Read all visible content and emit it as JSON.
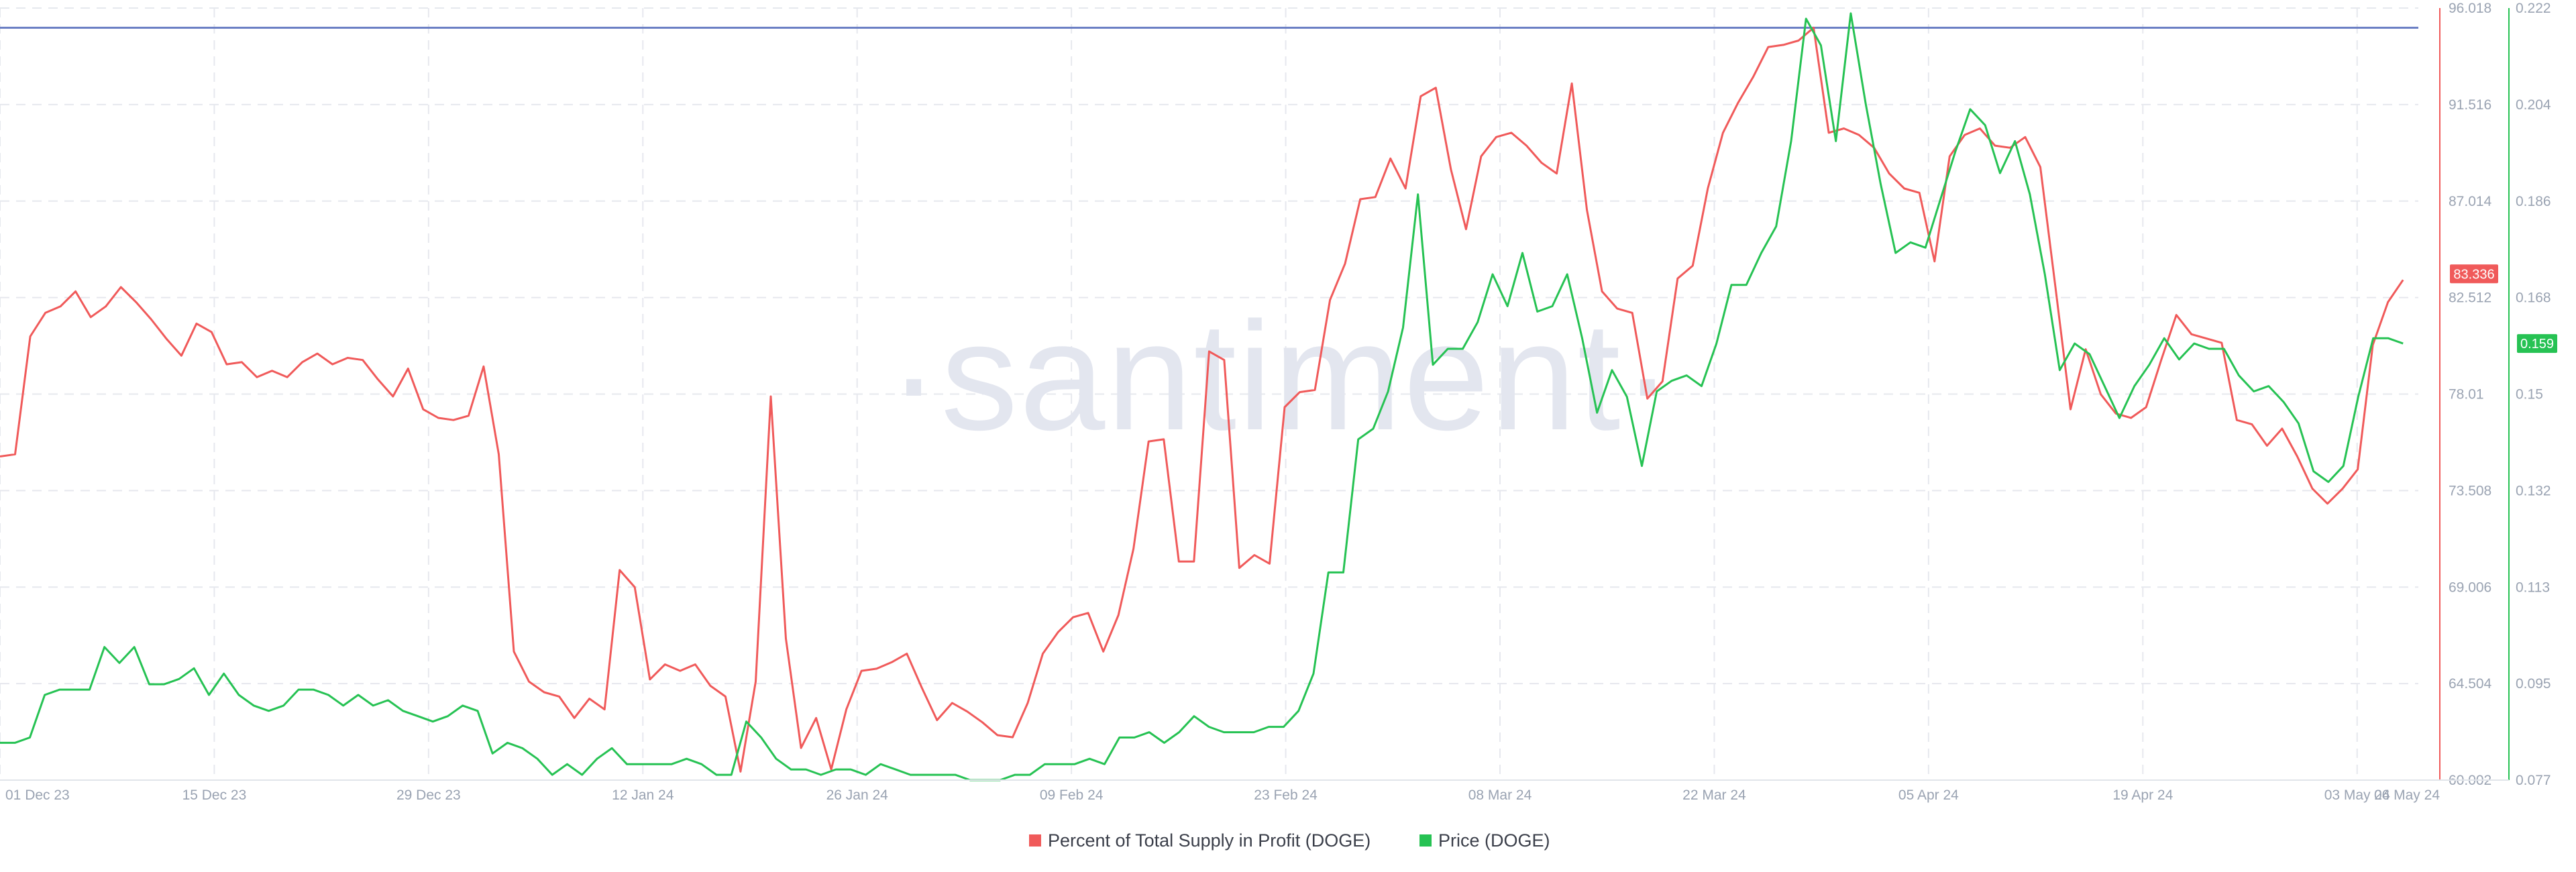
{
  "watermark": "·santiment·",
  "colors": {
    "profit": "#f05a5a",
    "price": "#26c253",
    "reference_line": "#6b7fc4",
    "grid": "#e6e8ee",
    "tick_text": "#9aa3b2"
  },
  "chart_data": {
    "type": "line",
    "x_labels": [
      "01 Dec 23",
      "15 Dec 23",
      "29 Dec 23",
      "12 Jan 24",
      "26 Jan 24",
      "09 Feb 24",
      "23 Feb 24",
      "08 Mar 24",
      "22 Mar 24",
      "05 Apr 24",
      "19 Apr 24",
      "03 May 24",
      "06 May 24"
    ],
    "x_label_days": [
      0,
      14,
      28,
      42,
      56,
      70,
      84,
      98,
      112,
      126,
      140,
      154,
      157
    ],
    "x_range_days": [
      0,
      158
    ],
    "left_axis": {
      "ticks": [
        "96.018",
        "91.516",
        "87.014",
        "82.512",
        "78.01",
        "73.508",
        "69.006",
        "64.504",
        "60.002"
      ],
      "range": [
        60.002,
        96.018
      ]
    },
    "right_axis": {
      "ticks": [
        "0.222",
        "0.204",
        "0.186",
        "0.168",
        "0.15",
        "0.132",
        "0.113",
        "0.095",
        "0.077"
      ],
      "range": [
        0.077,
        0.222
      ]
    },
    "reference_line_value": 95.1,
    "current_values": {
      "profit": "83.336",
      "price": "0.159"
    },
    "legend_position": "bottom-center",
    "grid": true,
    "series": [
      {
        "name": "Percent of Total Supply in Profit (DOGE)",
        "axis": "left",
        "values": [
          75.1,
          75.2,
          80.7,
          81.8,
          82.1,
          82.8,
          81.6,
          82.1,
          83.0,
          82.3,
          81.5,
          80.6,
          79.8,
          81.3,
          80.9,
          79.4,
          79.5,
          78.8,
          79.1,
          78.8,
          79.5,
          79.9,
          79.4,
          79.7,
          79.6,
          78.7,
          77.9,
          79.2,
          77.3,
          76.9,
          76.8,
          77.0,
          79.3,
          75.2,
          66.0,
          64.6,
          64.1,
          63.9,
          62.9,
          63.8,
          63.3,
          69.8,
          69.0,
          64.7,
          65.4,
          65.1,
          65.4,
          64.4,
          63.9,
          60.4,
          64.6,
          77.9,
          66.6,
          61.5,
          62.9,
          60.5,
          63.3,
          65.1,
          65.2,
          65.5,
          65.9,
          64.3,
          62.8,
          63.6,
          63.2,
          62.7,
          62.1,
          62.0,
          63.6,
          65.9,
          66.9,
          67.6,
          67.8,
          66.0,
          67.7,
          70.8,
          75.8,
          75.9,
          70.2,
          70.2,
          80.0,
          79.6,
          69.9,
          70.5,
          70.1,
          77.4,
          78.1,
          78.2,
          82.4,
          84.1,
          87.1,
          87.2,
          89.0,
          87.6,
          91.9,
          92.3,
          88.5,
          85.7,
          89.1,
          90.0,
          90.2,
          89.6,
          88.8,
          88.3,
          92.5,
          86.6,
          82.8,
          82.0,
          81.8,
          77.8,
          78.6,
          83.4,
          84.0,
          87.6,
          90.2,
          91.6,
          92.8,
          94.2,
          94.3,
          94.5,
          95.1,
          90.2,
          90.4,
          90.1,
          89.5,
          88.3,
          87.6,
          87.4,
          84.2,
          89.1,
          90.1,
          90.4,
          89.6,
          89.5,
          90.0,
          88.6,
          83.0,
          77.3,
          80.1,
          78.0,
          77.1,
          76.9,
          77.4,
          79.6,
          81.7,
          80.8,
          80.6,
          80.4,
          76.8,
          76.6,
          75.6,
          76.4,
          75.1,
          73.6,
          72.9,
          73.6,
          74.5,
          80.3,
          82.3,
          83.336
        ]
      },
      {
        "name": "Price (DOGE)",
        "axis": "right",
        "values": [
          0.084,
          0.084,
          0.085,
          0.093,
          0.094,
          0.094,
          0.094,
          0.102,
          0.099,
          0.102,
          0.095,
          0.095,
          0.096,
          0.098,
          0.093,
          0.097,
          0.093,
          0.091,
          0.09,
          0.091,
          0.094,
          0.094,
          0.093,
          0.091,
          0.093,
          0.091,
          0.092,
          0.09,
          0.089,
          0.088,
          0.089,
          0.091,
          0.09,
          0.082,
          0.084,
          0.083,
          0.081,
          0.078,
          0.08,
          0.078,
          0.081,
          0.083,
          0.08,
          0.08,
          0.08,
          0.08,
          0.081,
          0.08,
          0.078,
          0.078,
          0.088,
          0.085,
          0.081,
          0.079,
          0.079,
          0.078,
          0.079,
          0.079,
          0.078,
          0.08,
          0.079,
          0.078,
          0.078,
          0.078,
          0.078,
          0.077,
          0.077,
          0.077,
          0.078,
          0.078,
          0.08,
          0.08,
          0.08,
          0.081,
          0.08,
          0.085,
          0.085,
          0.086,
          0.084,
          0.086,
          0.089,
          0.087,
          0.086,
          0.086,
          0.086,
          0.087,
          0.087,
          0.09,
          0.097,
          0.116,
          0.116,
          0.141,
          0.143,
          0.15,
          0.162,
          0.187,
          0.155,
          0.158,
          0.158,
          0.163,
          0.172,
          0.166,
          0.176,
          0.165,
          0.166,
          0.172,
          0.16,
          0.146,
          0.154,
          0.149,
          0.136,
          0.15,
          0.152,
          0.153,
          0.151,
          0.159,
          0.17,
          0.17,
          0.176,
          0.181,
          0.197,
          0.22,
          0.215,
          0.197,
          0.221,
          0.204,
          0.189,
          0.176,
          0.178,
          0.177,
          0.186,
          0.195,
          0.203,
          0.2,
          0.191,
          0.197,
          0.187,
          0.172,
          0.154,
          0.159,
          0.157,
          0.151,
          0.145,
          0.151,
          0.155,
          0.16,
          0.156,
          0.159,
          0.158,
          0.158,
          0.153,
          0.15,
          0.151,
          0.148,
          0.144,
          0.135,
          0.133,
          0.136,
          0.149,
          0.16,
          0.16,
          0.159
        ]
      }
    ]
  }
}
